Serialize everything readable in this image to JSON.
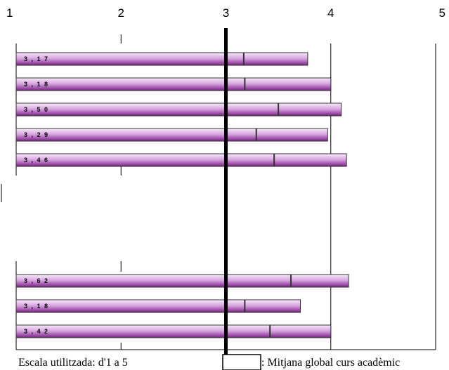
{
  "chart_data": {
    "type": "bar",
    "orientation": "horizontal",
    "xlim": [
      1,
      5
    ],
    "ticks": [
      1,
      2,
      3,
      4,
      5
    ],
    "reference_line": 3,
    "groups": [
      {
        "bars": [
          {
            "label": "3 , 1 7",
            "mean": 3.17,
            "end": 3.78
          },
          {
            "label": "3 , 1 8",
            "mean": 3.18,
            "end": 4.0
          },
          {
            "label": "3 , 5 0",
            "mean": 3.5,
            "end": 4.1
          },
          {
            "label": "3 , 2 9",
            "mean": 3.29,
            "end": 3.97
          },
          {
            "label": "3 , 4 6",
            "mean": 3.46,
            "end": 4.15
          }
        ]
      },
      {
        "bars": [
          {
            "label": "3 , 6 2",
            "mean": 3.62,
            "end": 4.17
          },
          {
            "label": "3 , 1 8",
            "mean": 3.18,
            "end": 3.71
          },
          {
            "label": "3 , 4 2",
            "mean": 3.42,
            "end": 4.0
          }
        ]
      }
    ]
  },
  "footer": {
    "scale_text": "Escala utilitzada: d'1 a 5",
    "legend_text": ": Mitjana global curs acadèmic"
  }
}
